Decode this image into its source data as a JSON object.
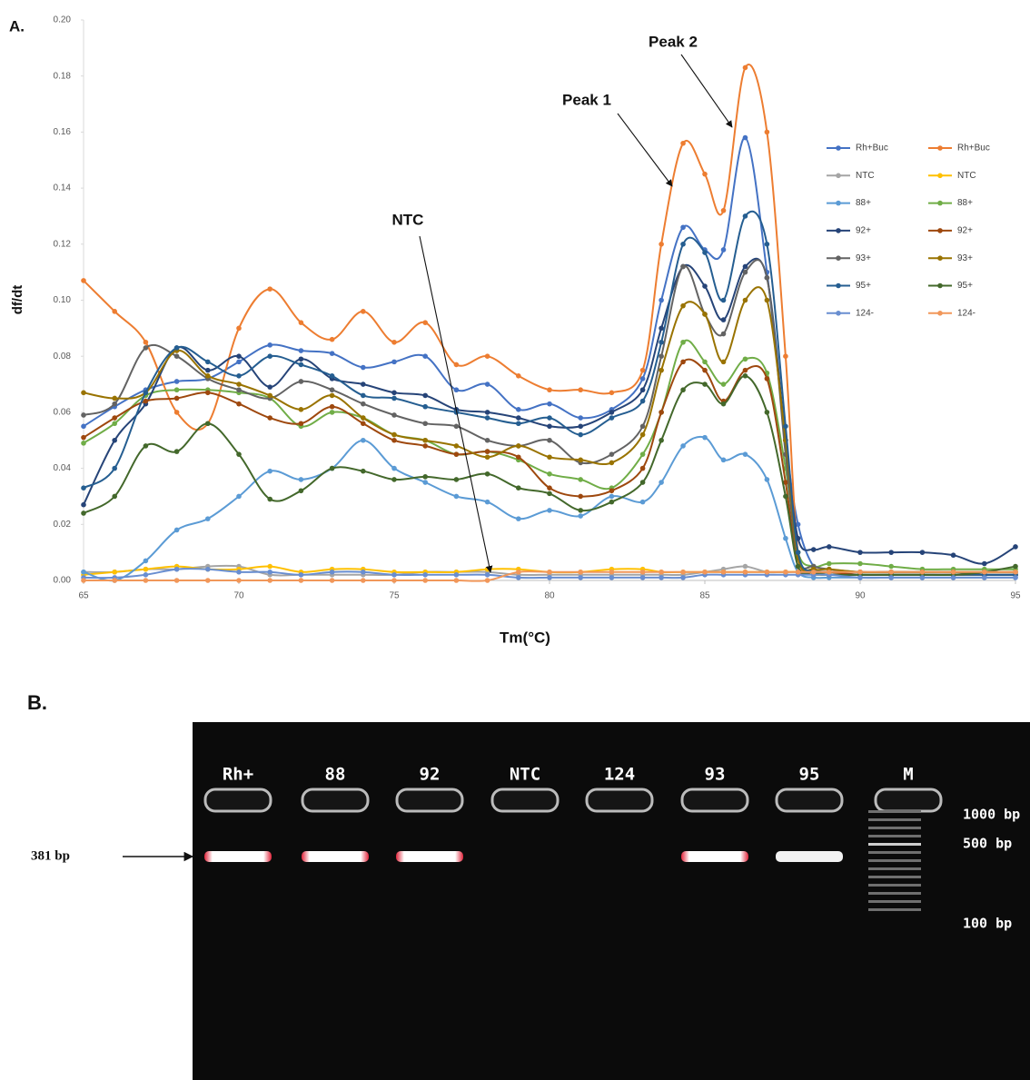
{
  "chart_data": {
    "type": "line",
    "panel_label": "A.",
    "y_label": "df/dt",
    "x_label": "Tm(°C)",
    "xlim": [
      65,
      95
    ],
    "xticks": [
      65,
      70,
      75,
      80,
      85,
      90,
      95
    ],
    "ylim": [
      0,
      0.2
    ],
    "yticks": [
      {
        "value": 0,
        "label": "0.00"
      },
      0.02,
      0.04,
      0.06,
      0.08,
      {
        "value": 0.1,
        "label": "0.10"
      },
      0.12,
      0.14,
      0.16,
      0.18,
      {
        "value": 0.2,
        "label": "0.20"
      }
    ],
    "grid": false,
    "annotations": [
      {
        "text": "Peak 1"
      },
      {
        "text": "Peak 2"
      },
      {
        "text": "NTC"
      }
    ],
    "x": [
      65,
      66,
      67,
      68,
      69,
      70,
      71,
      72,
      73,
      74,
      75,
      76,
      77,
      78,
      79,
      80,
      81,
      82,
      83,
      83.6,
      84.3,
      85,
      85.6,
      86.3,
      87,
      87.6,
      88,
      88.5,
      89,
      90,
      91,
      92,
      93,
      94,
      95
    ],
    "series": [
      {
        "name": "Rh+Buc",
        "color": "#4472c4",
        "values": [
          0.055,
          0.062,
          0.068,
          0.071,
          0.072,
          0.078,
          0.084,
          0.082,
          0.081,
          0.076,
          0.078,
          0.08,
          0.068,
          0.07,
          0.061,
          0.063,
          0.058,
          0.061,
          0.072,
          0.1,
          0.126,
          0.118,
          0.118,
          0.158,
          0.11,
          0.05,
          0.02,
          0.005,
          0.003,
          0.002,
          0.002,
          0.002,
          0.002,
          0.002,
          0.002
        ]
      },
      {
        "name": "Rh+Buc",
        "color": "#ed7d31",
        "values": [
          0.107,
          0.096,
          0.085,
          0.06,
          0.056,
          0.09,
          0.104,
          0.092,
          0.086,
          0.096,
          0.085,
          0.092,
          0.077,
          0.08,
          0.073,
          0.068,
          0.068,
          0.067,
          0.075,
          0.12,
          0.156,
          0.145,
          0.132,
          0.183,
          0.16,
          0.08,
          0.01,
          0.003,
          0.003,
          0.003,
          0.003,
          0.003,
          0.003,
          0.003,
          0.003
        ]
      },
      {
        "name": "NTC",
        "color": "#a5a5a5",
        "values": [
          0.003,
          0.003,
          0.004,
          0.004,
          0.005,
          0.005,
          0.002,
          0.002,
          0.002,
          0.002,
          0.002,
          0.003,
          0.003,
          0.003,
          0.002,
          0.002,
          0.002,
          0.002,
          0.002,
          0.002,
          0.002,
          0.003,
          0.004,
          0.005,
          0.003,
          0.003,
          0.003,
          0.003,
          0.003,
          0.003,
          0.003,
          0.003,
          0.003,
          0.003,
          0.003
        ]
      },
      {
        "name": "NTC",
        "color": "#ffc000",
        "values": [
          0.002,
          0.003,
          0.004,
          0.005,
          0.004,
          0.004,
          0.005,
          0.003,
          0.004,
          0.004,
          0.003,
          0.003,
          0.003,
          0.004,
          0.004,
          0.003,
          0.003,
          0.004,
          0.004,
          0.003,
          0.003,
          0.003,
          0.003,
          0.003,
          0.003,
          0.003,
          0.003,
          0.002,
          0.002,
          0.002,
          0.002,
          0.002,
          0.002,
          0.002,
          0.002
        ]
      },
      {
        "name": "88+",
        "color": "#5b9bd5",
        "values": [
          0.003,
          0.0,
          0.007,
          0.018,
          0.022,
          0.03,
          0.039,
          0.036,
          0.04,
          0.05,
          0.04,
          0.035,
          0.03,
          0.028,
          0.022,
          0.025,
          0.023,
          0.03,
          0.028,
          0.035,
          0.048,
          0.051,
          0.043,
          0.045,
          0.036,
          0.015,
          0.003,
          0.001,
          0.001,
          0.001,
          0.001,
          0.001,
          0.001,
          0.001,
          0.001
        ]
      },
      {
        "name": "88+",
        "color": "#70ad47",
        "values": [
          0.049,
          0.056,
          0.066,
          0.068,
          0.068,
          0.067,
          0.065,
          0.055,
          0.06,
          0.058,
          0.052,
          0.05,
          0.045,
          0.046,
          0.043,
          0.038,
          0.036,
          0.033,
          0.045,
          0.06,
          0.085,
          0.078,
          0.07,
          0.079,
          0.074,
          0.04,
          0.01,
          0.005,
          0.006,
          0.006,
          0.005,
          0.004,
          0.004,
          0.004,
          0.004
        ]
      },
      {
        "name": "92+",
        "color": "#264478",
        "values": [
          0.027,
          0.05,
          0.063,
          0.083,
          0.075,
          0.08,
          0.069,
          0.079,
          0.072,
          0.07,
          0.067,
          0.066,
          0.061,
          0.06,
          0.058,
          0.055,
          0.055,
          0.06,
          0.068,
          0.09,
          0.112,
          0.105,
          0.093,
          0.112,
          0.108,
          0.05,
          0.015,
          0.011,
          0.012,
          0.01,
          0.01,
          0.01,
          0.009,
          0.006,
          0.012
        ]
      },
      {
        "name": "92+",
        "color": "#9e480e",
        "values": [
          0.051,
          0.058,
          0.064,
          0.065,
          0.067,
          0.063,
          0.058,
          0.056,
          0.062,
          0.056,
          0.05,
          0.048,
          0.045,
          0.046,
          0.044,
          0.033,
          0.03,
          0.032,
          0.04,
          0.06,
          0.078,
          0.075,
          0.064,
          0.075,
          0.072,
          0.035,
          0.005,
          0.003,
          0.003,
          0.002,
          0.002,
          0.002,
          0.002,
          0.002,
          0.002
        ]
      },
      {
        "name": "93+",
        "color": "#636363",
        "values": [
          0.059,
          0.063,
          0.083,
          0.08,
          0.072,
          0.068,
          0.065,
          0.071,
          0.068,
          0.063,
          0.059,
          0.056,
          0.055,
          0.05,
          0.048,
          0.05,
          0.042,
          0.045,
          0.055,
          0.08,
          0.112,
          0.095,
          0.088,
          0.11,
          0.108,
          0.045,
          0.008,
          0.005,
          0.004,
          0.003,
          0.003,
          0.003,
          0.003,
          0.002,
          0.002
        ]
      },
      {
        "name": "93+",
        "color": "#997300",
        "values": [
          0.067,
          0.065,
          0.067,
          0.082,
          0.073,
          0.07,
          0.066,
          0.061,
          0.066,
          0.058,
          0.052,
          0.05,
          0.048,
          0.044,
          0.048,
          0.044,
          0.043,
          0.042,
          0.052,
          0.075,
          0.098,
          0.095,
          0.078,
          0.1,
          0.1,
          0.05,
          0.008,
          0.004,
          0.004,
          0.003,
          0.003,
          0.003,
          0.003,
          0.003,
          0.003
        ]
      },
      {
        "name": "95+",
        "color": "#255e91",
        "values": [
          0.033,
          0.04,
          0.067,
          0.083,
          0.078,
          0.073,
          0.08,
          0.077,
          0.073,
          0.066,
          0.065,
          0.062,
          0.06,
          0.058,
          0.056,
          0.058,
          0.052,
          0.058,
          0.064,
          0.085,
          0.12,
          0.117,
          0.1,
          0.13,
          0.12,
          0.055,
          0.01,
          0.003,
          0.002,
          0.002,
          0.002,
          0.002,
          0.002,
          0.002,
          0.002
        ]
      },
      {
        "name": "95+",
        "color": "#43682b",
        "values": [
          0.024,
          0.03,
          0.048,
          0.046,
          0.056,
          0.045,
          0.029,
          0.032,
          0.04,
          0.039,
          0.036,
          0.037,
          0.036,
          0.038,
          0.033,
          0.031,
          0.025,
          0.028,
          0.035,
          0.05,
          0.068,
          0.07,
          0.063,
          0.073,
          0.06,
          0.03,
          0.005,
          0.003,
          0.002,
          0.002,
          0.002,
          0.002,
          0.002,
          0.003,
          0.005
        ]
      },
      {
        "name": "124-",
        "color": "#698ed0",
        "values": [
          0.001,
          0.001,
          0.002,
          0.004,
          0.004,
          0.003,
          0.003,
          0.002,
          0.003,
          0.003,
          0.002,
          0.002,
          0.002,
          0.002,
          0.001,
          0.001,
          0.001,
          0.001,
          0.001,
          0.001,
          0.001,
          0.002,
          0.002,
          0.002,
          0.002,
          0.002,
          0.002,
          0.002,
          0.002,
          0.001,
          0.001,
          0.001,
          0.001,
          0.001,
          0.001
        ]
      },
      {
        "name": "124-",
        "color": "#f1975a",
        "values": [
          0.0,
          0.0,
          0.0,
          0.0,
          0.0,
          0.0,
          0.0,
          0.0,
          0.0,
          0.0,
          0.0,
          0.0,
          0.0,
          0.0,
          0.003,
          0.003,
          0.003,
          0.003,
          0.003,
          0.003,
          0.003,
          0.003,
          0.003,
          0.003,
          0.003,
          0.003,
          0.003,
          0.003,
          0.003,
          0.003,
          0.003,
          0.003,
          0.003,
          0.003,
          0.003
        ]
      }
    ]
  },
  "gel": {
    "panel_label": "B.",
    "lanes": [
      "Rh+",
      "88",
      "92",
      "NTC",
      "124",
      "93",
      "95",
      "M"
    ],
    "size_markers": [
      "1000 bp",
      "500 bp",
      "100 bp"
    ],
    "band_label": "381 bp"
  }
}
